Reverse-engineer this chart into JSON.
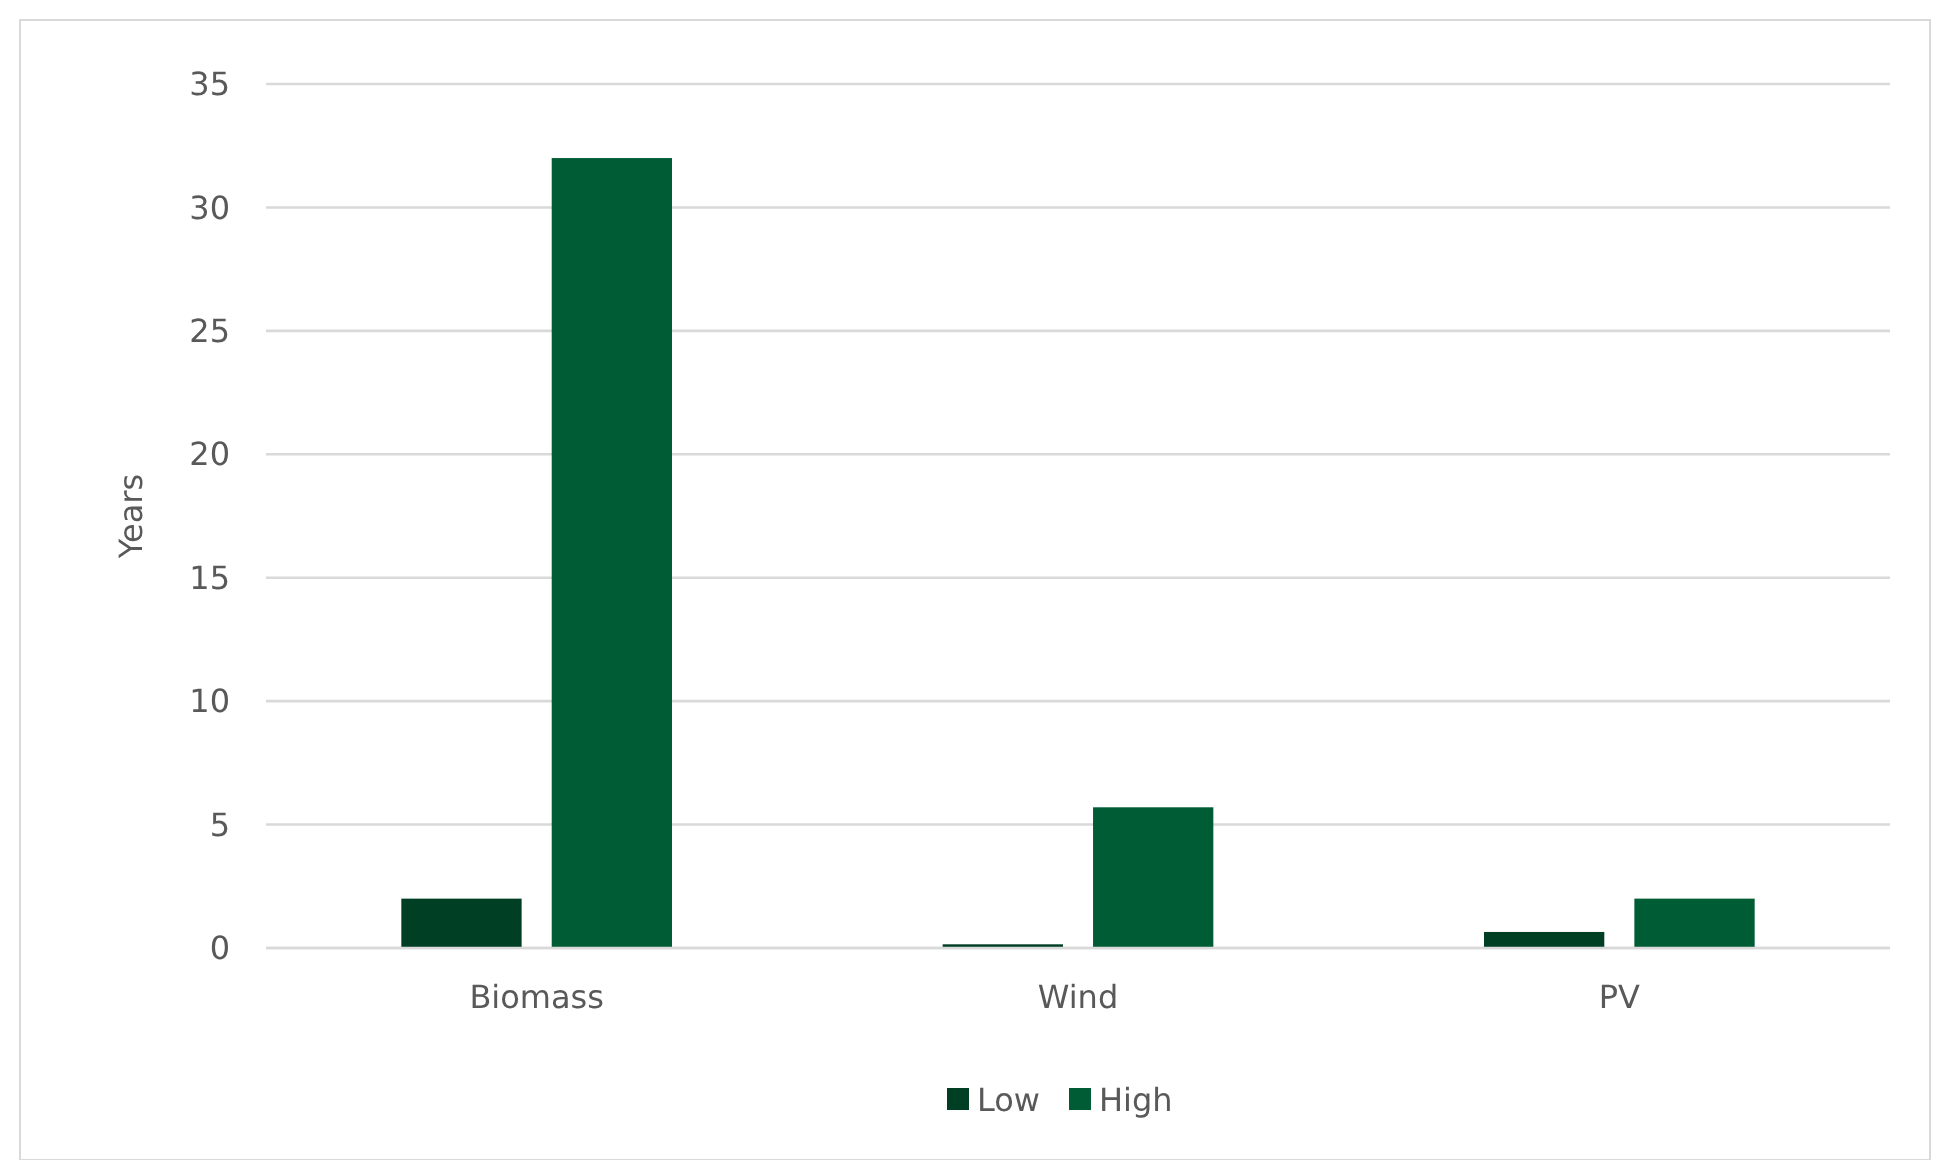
{
  "chart_data": {
    "type": "bar",
    "ylabel": "Years",
    "categories": [
      "Biomass",
      "Wind",
      "PV"
    ],
    "series": [
      {
        "name": "Low",
        "color": "#003f24",
        "values": [
          2,
          0.15,
          0.65
        ]
      },
      {
        "name": "High",
        "color": "#005c35",
        "values": [
          32,
          5.7,
          2
        ]
      }
    ],
    "ylim": [
      0,
      35
    ],
    "yticks": [
      0,
      5,
      10,
      15,
      20,
      25,
      30,
      35
    ],
    "grid": "y",
    "legend": "bottom"
  }
}
